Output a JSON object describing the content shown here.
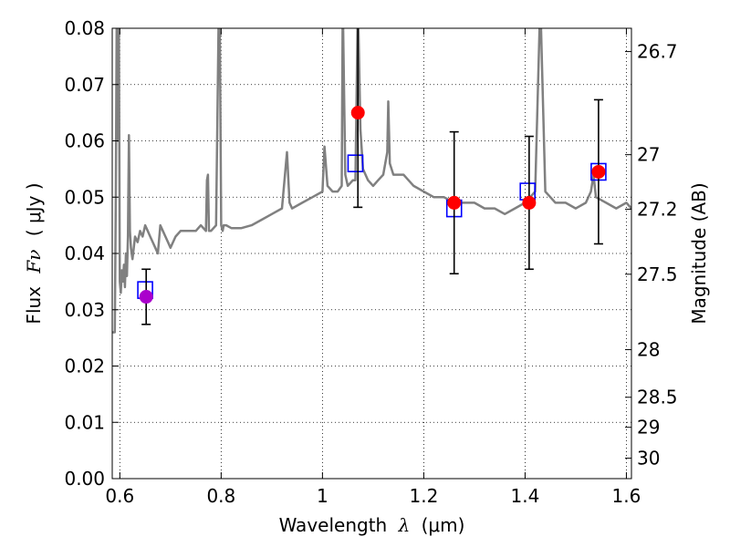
{
  "chart_data": {
    "type": "scatter",
    "x_axis": {
      "label_prefix": "Wavelength",
      "label_symbol": "λ",
      "label_unit": "(μm)",
      "range": [
        0.585,
        1.61
      ],
      "ticks": [
        0.6,
        0.8,
        1.0,
        1.2,
        1.4,
        1.6
      ],
      "tick_labels": [
        "0.6",
        "0.8",
        "1",
        "1.2",
        "1.4",
        "1.6"
      ]
    },
    "y_axis": {
      "label_prefix": "Flux",
      "label_symbol": "Fν",
      "label_unit": "( μJy )",
      "range": [
        0.0,
        0.08
      ],
      "ticks": [
        0.0,
        0.01,
        0.02,
        0.03,
        0.04,
        0.05,
        0.06,
        0.07,
        0.08
      ],
      "tick_labels": [
        "0.00",
        "0.01",
        "0.02",
        "0.03",
        "0.04",
        "0.05",
        "0.06",
        "0.07",
        "0.08"
      ]
    },
    "y2_axis": {
      "label": "Magnitude (AB)",
      "scale": "AB magnitude (m = 23.9 - 2.5 log10 Fν)",
      "ticks": [
        26.7,
        27,
        27.2,
        27.5,
        28,
        28.5,
        29,
        30
      ],
      "tick_labels": [
        "26.7",
        "27",
        "27.2",
        "27.5",
        "28",
        "28.5",
        "29",
        "30"
      ]
    },
    "grid": true,
    "series": [
      {
        "kind": "model-spectrum-line",
        "color": "#808080",
        "x": [
          0.585,
          0.59,
          0.592,
          0.594,
          0.596,
          0.598,
          0.6,
          0.602,
          0.604,
          0.606,
          0.608,
          0.61,
          0.612,
          0.614,
          0.616,
          0.618,
          0.62,
          0.622,
          0.625,
          0.63,
          0.635,
          0.64,
          0.645,
          0.65,
          0.655,
          0.66,
          0.665,
          0.67,
          0.675,
          0.68,
          0.685,
          0.69,
          0.695,
          0.7,
          0.71,
          0.72,
          0.73,
          0.74,
          0.75,
          0.76,
          0.77,
          0.772,
          0.774,
          0.776,
          0.78,
          0.79,
          0.795,
          0.797,
          0.8,
          0.803,
          0.805,
          0.81,
          0.82,
          0.84,
          0.86,
          0.88,
          0.9,
          0.92,
          0.93,
          0.935,
          0.94,
          0.96,
          0.98,
          1.0,
          1.004,
          1.01,
          1.02,
          1.03,
          1.038,
          1.04,
          1.045,
          1.05,
          1.06,
          1.065,
          1.07,
          1.075,
          1.08,
          1.09,
          1.1,
          1.11,
          1.12,
          1.128,
          1.13,
          1.133,
          1.14,
          1.16,
          1.18,
          1.2,
          1.22,
          1.24,
          1.26,
          1.28,
          1.3,
          1.32,
          1.34,
          1.36,
          1.38,
          1.4,
          1.42,
          1.43,
          1.44,
          1.45,
          1.46,
          1.48,
          1.5,
          1.52,
          1.53,
          1.535,
          1.54,
          1.56,
          1.58,
          1.6,
          1.61
        ],
        "y": [
          0.026,
          0.026,
          0.05,
          0.085,
          0.06,
          0.085,
          0.035,
          0.033,
          0.037,
          0.035,
          0.038,
          0.034,
          0.04,
          0.036,
          0.043,
          0.061,
          0.044,
          0.041,
          0.039,
          0.043,
          0.042,
          0.044,
          0.043,
          0.045,
          0.044,
          0.043,
          0.042,
          0.041,
          0.04,
          0.045,
          0.044,
          0.043,
          0.042,
          0.041,
          0.043,
          0.044,
          0.044,
          0.044,
          0.044,
          0.045,
          0.044,
          0.053,
          0.054,
          0.044,
          0.044,
          0.045,
          0.082,
          0.085,
          0.045,
          0.044,
          0.045,
          0.045,
          0.0445,
          0.0445,
          0.045,
          0.046,
          0.047,
          0.048,
          0.058,
          0.049,
          0.048,
          0.049,
          0.05,
          0.051,
          0.059,
          0.052,
          0.051,
          0.051,
          0.052,
          0.085,
          0.054,
          0.052,
          0.053,
          0.053,
          0.085,
          0.062,
          0.055,
          0.053,
          0.052,
          0.053,
          0.054,
          0.058,
          0.067,
          0.056,
          0.054,
          0.054,
          0.052,
          0.051,
          0.05,
          0.05,
          0.049,
          0.049,
          0.049,
          0.048,
          0.048,
          0.047,
          0.048,
          0.049,
          0.051,
          0.085,
          0.051,
          0.05,
          0.049,
          0.049,
          0.048,
          0.049,
          0.051,
          0.054,
          0.05,
          0.049,
          0.048,
          0.049,
          0.048
        ]
      },
      {
        "kind": "model-bandpass-flux",
        "marker": "open-square",
        "color": "#0000ff",
        "x": [
          0.65,
          1.065,
          1.26,
          1.405,
          1.545
        ],
        "y": [
          0.0335,
          0.056,
          0.048,
          0.051,
          0.0545
        ]
      },
      {
        "kind": "observed-flux",
        "marker": "filled-circle",
        "color": "#ff0000",
        "x": [
          1.07,
          1.26,
          1.408,
          1.545
        ],
        "y": [
          0.065,
          0.049,
          0.049,
          0.0545
        ],
        "yerr": [
          0.0168,
          0.0126,
          0.0118,
          0.0128
        ]
      },
      {
        "kind": "observed-flux",
        "marker": "filled-circle",
        "color": "#aa00cc",
        "x": [
          0.652
        ],
        "y": [
          0.0323
        ],
        "yerr": [
          0.0049
        ]
      }
    ]
  }
}
